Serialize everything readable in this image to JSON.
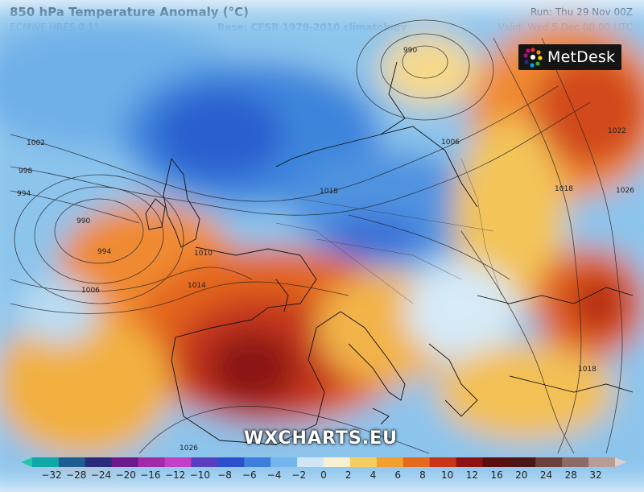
{
  "header": {
    "title": "850 hPa Temperature Anomaly (°C)",
    "model": "ECMWF HRES 0.1°",
    "base": "Base: CFSR 1979-2010 climatology",
    "run": "Run: Thu 29 Nov 00Z",
    "valid": "Valid: Wed 5 Dec 00:00 UTC"
  },
  "logo": {
    "text": "MetDesk",
    "icon": "metdesk-logo-icon"
  },
  "watermark": "WXCHARTS.EU",
  "isobar_labels": [
    "990",
    "1002",
    "998",
    "994",
    "990",
    "994",
    "1006",
    "1006",
    "1018",
    "1014",
    "1010",
    "1022",
    "1026",
    "1018",
    "1018",
    "1026"
  ],
  "colorbar": {
    "ticks": [
      "−32",
      "−28",
      "−24",
      "−20",
      "−16",
      "−12",
      "−10",
      "−8",
      "−6",
      "−4",
      "−2",
      "0",
      "2",
      "4",
      "6",
      "8",
      "10",
      "12",
      "16",
      "20",
      "24",
      "28",
      "32"
    ],
    "colors": [
      "#1ec9a6",
      "#0fa8a8",
      "#1b5e8f",
      "#2a2a7a",
      "#6a1a8a",
      "#a12aa8",
      "#c23fc6",
      "#5a3ec0",
      "#2b4fcf",
      "#3d7fdc",
      "#74b6ec",
      "#cfe6f6",
      "#f7f0d2",
      "#f6cd60",
      "#f1a030",
      "#e56a1e",
      "#c8341a",
      "#8e1212",
      "#5a0f0f",
      "#4a1616",
      "#6b3f3a",
      "#8c6b66",
      "#b89c96",
      "#ddd0cc"
    ]
  }
}
